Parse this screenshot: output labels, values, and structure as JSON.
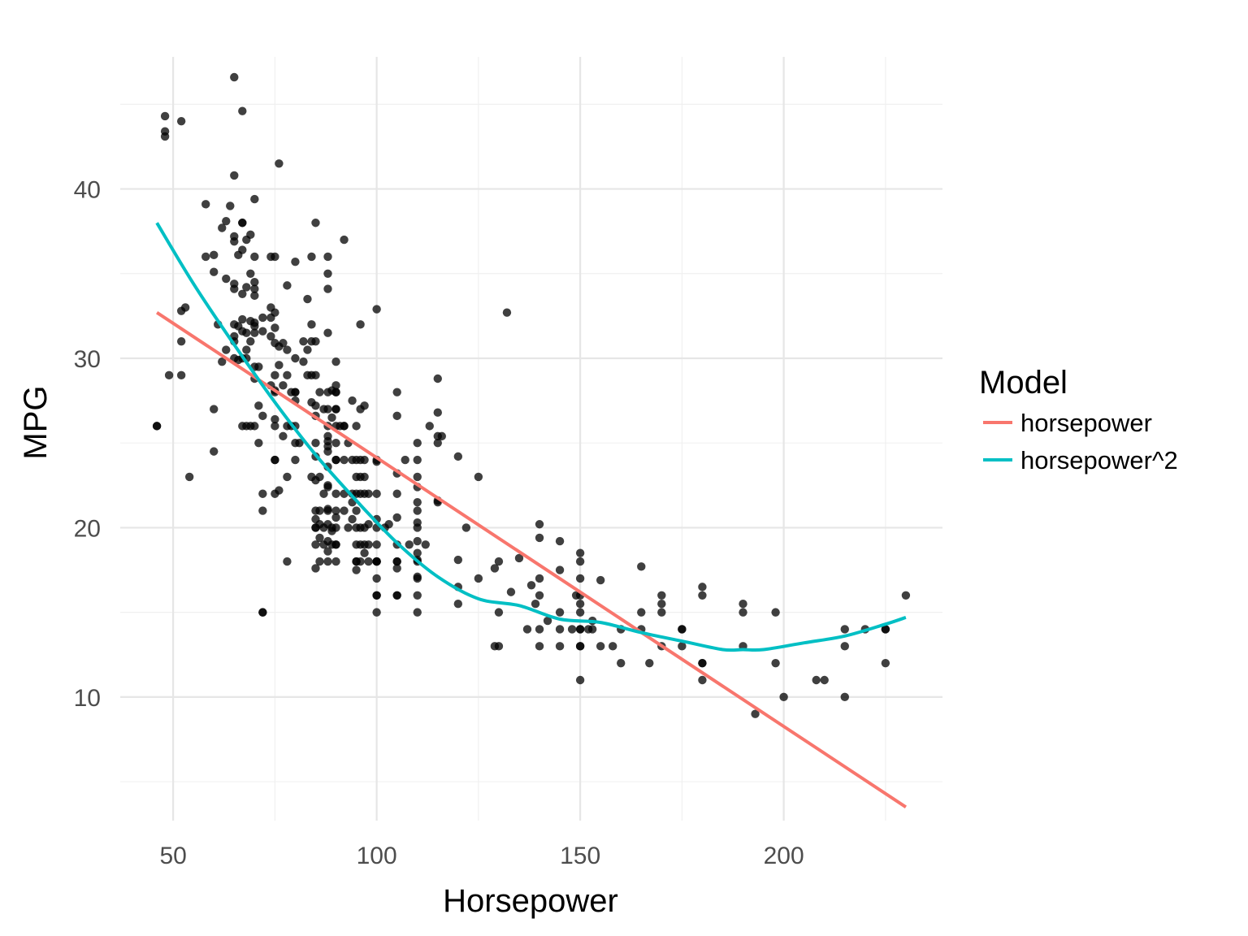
{
  "chart_data": {
    "type": "scatter",
    "xlabel": "Horsepower",
    "ylabel": "MPG",
    "xlim": [
      37,
      239
    ],
    "ylim": [
      2.7,
      47.8
    ],
    "x_ticks": [
      50,
      100,
      150,
      200
    ],
    "y_ticks": [
      10,
      20,
      30,
      40
    ],
    "x_tick_labels": [
      "50",
      "100",
      "150",
      "200"
    ],
    "y_tick_labels": [
      "10",
      "20",
      "30",
      "40"
    ],
    "grid": true,
    "legend": {
      "title": "Model",
      "position": "right",
      "entries": [
        {
          "label": "horsepower",
          "color": "#F8766D"
        },
        {
          "label": "horsepower^2",
          "color": "#00BFC4"
        }
      ]
    },
    "point_color": "#000000",
    "point_opacity": 0.75,
    "points": [
      [
        46,
        26
      ],
      [
        46,
        26
      ],
      [
        48,
        44.3
      ],
      [
        48,
        43.4
      ],
      [
        48,
        43.1
      ],
      [
        49,
        29
      ],
      [
        52,
        44
      ],
      [
        52,
        32.8
      ],
      [
        52,
        31
      ],
      [
        52,
        29
      ],
      [
        53,
        33
      ],
      [
        54,
        23
      ],
      [
        58,
        39.1
      ],
      [
        58,
        36
      ],
      [
        60,
        36.1
      ],
      [
        60,
        35.1
      ],
      [
        60,
        27
      ],
      [
        60,
        24.5
      ],
      [
        61,
        32
      ],
      [
        62,
        29.8
      ],
      [
        62,
        37.7
      ],
      [
        63,
        38.1
      ],
      [
        63,
        30.5
      ],
      [
        63,
        34.7
      ],
      [
        64,
        39
      ],
      [
        65,
        46.6
      ],
      [
        65,
        40.8
      ],
      [
        65,
        37.2
      ],
      [
        65,
        36.9
      ],
      [
        65,
        34.4
      ],
      [
        65,
        34.1
      ],
      [
        65,
        32
      ],
      [
        65,
        31.3
      ],
      [
        65,
        31
      ],
      [
        65,
        30
      ],
      [
        66,
        36.1
      ],
      [
        66,
        31.9
      ],
      [
        66,
        29.9
      ],
      [
        67,
        44.6
      ],
      [
        67,
        38
      ],
      [
        67,
        38
      ],
      [
        67,
        36.4
      ],
      [
        67,
        33.8
      ],
      [
        67,
        32.3
      ],
      [
        67,
        31.6
      ],
      [
        67,
        30
      ],
      [
        67,
        26
      ],
      [
        68,
        34.2
      ],
      [
        68,
        37
      ],
      [
        68,
        31.5
      ],
      [
        68,
        30
      ],
      [
        68,
        30.5
      ],
      [
        68,
        26
      ],
      [
        69,
        37.3
      ],
      [
        69,
        35
      ],
      [
        69,
        32.2
      ],
      [
        69,
        31
      ],
      [
        69,
        26
      ],
      [
        70,
        39.4
      ],
      [
        70,
        36
      ],
      [
        70,
        34.5
      ],
      [
        70,
        34.1
      ],
      [
        70,
        33.7
      ],
      [
        70,
        32.1
      ],
      [
        70,
        31.9
      ],
      [
        70,
        31.5
      ],
      [
        70,
        29.5
      ],
      [
        70,
        28.8
      ],
      [
        70,
        26
      ],
      [
        71,
        29.5
      ],
      [
        71,
        27.2
      ],
      [
        71,
        25
      ],
      [
        72,
        32.4
      ],
      [
        72,
        31.6
      ],
      [
        72,
        26.6
      ],
      [
        72,
        22
      ],
      [
        72,
        21
      ],
      [
        72,
        15
      ],
      [
        72,
        15
      ],
      [
        74,
        36
      ],
      [
        74,
        33
      ],
      [
        74,
        32.4
      ],
      [
        74,
        31.3
      ],
      [
        74,
        28.4
      ],
      [
        75,
        36
      ],
      [
        75,
        32.7
      ],
      [
        75,
        31.8
      ],
      [
        75,
        30.9
      ],
      [
        75,
        29
      ],
      [
        75,
        28.1
      ],
      [
        75,
        26.4
      ],
      [
        75,
        26
      ],
      [
        75,
        24
      ],
      [
        75,
        24
      ],
      [
        75,
        22
      ],
      [
        75,
        28
      ],
      [
        76,
        41.5
      ],
      [
        76,
        30.7
      ],
      [
        76,
        29.6
      ],
      [
        76,
        22.2
      ],
      [
        77,
        30.9
      ],
      [
        77,
        28.4
      ],
      [
        77,
        25.4
      ],
      [
        78,
        34.3
      ],
      [
        78,
        30.5
      ],
      [
        78,
        29
      ],
      [
        78,
        26
      ],
      [
        78,
        23
      ],
      [
        78,
        18
      ],
      [
        79,
        28
      ],
      [
        79,
        26
      ],
      [
        80,
        35.7
      ],
      [
        80,
        30
      ],
      [
        80,
        28
      ],
      [
        80,
        28
      ],
      [
        80,
        27.5
      ],
      [
        80,
        26
      ],
      [
        80,
        25
      ],
      [
        80,
        24
      ],
      [
        81,
        25
      ],
      [
        82,
        29.8
      ],
      [
        82,
        31
      ],
      [
        83,
        33.5
      ],
      [
        83,
        30.5
      ],
      [
        83,
        29
      ],
      [
        84,
        29
      ],
      [
        84,
        27.4
      ],
      [
        84,
        36
      ],
      [
        84,
        32
      ],
      [
        84,
        31
      ],
      [
        84,
        23
      ],
      [
        85,
        38
      ],
      [
        85,
        31
      ],
      [
        85,
        27.2
      ],
      [
        85,
        29
      ],
      [
        85,
        26.6
      ],
      [
        85,
        25
      ],
      [
        85,
        24.2
      ],
      [
        85,
        21
      ],
      [
        85,
        20
      ],
      [
        85,
        20
      ],
      [
        85,
        19
      ],
      [
        85,
        17.6
      ],
      [
        85,
        20.5
      ],
      [
        85,
        22.8
      ],
      [
        86,
        28
      ],
      [
        86,
        23
      ],
      [
        86,
        21
      ],
      [
        86,
        20.2
      ],
      [
        86,
        19.4
      ],
      [
        86,
        18
      ],
      [
        87,
        27
      ],
      [
        87,
        22
      ],
      [
        87,
        20
      ],
      [
        87,
        19
      ],
      [
        88,
        36
      ],
      [
        88,
        35
      ],
      [
        88,
        34.1
      ],
      [
        88,
        31.5
      ],
      [
        88,
        28
      ],
      [
        88,
        27
      ],
      [
        88,
        26
      ],
      [
        88,
        25.4
      ],
      [
        88,
        24.5
      ],
      [
        88,
        23.6
      ],
      [
        88,
        22.5
      ],
      [
        88,
        21
      ],
      [
        88,
        20.2
      ],
      [
        88,
        19.2
      ],
      [
        88,
        18.6
      ],
      [
        88,
        18
      ],
      [
        88,
        21.1
      ],
      [
        88,
        22.4
      ],
      [
        88,
        25.1
      ],
      [
        88,
        24.8
      ],
      [
        89,
        28.1
      ],
      [
        89,
        26.5
      ],
      [
        89,
        20
      ],
      [
        89,
        19.8
      ],
      [
        89,
        19
      ],
      [
        90,
        29.8
      ],
      [
        90,
        28.4
      ],
      [
        90,
        28
      ],
      [
        90,
        27
      ],
      [
        90,
        26
      ],
      [
        90,
        25
      ],
      [
        90,
        24
      ],
      [
        90,
        24
      ],
      [
        90,
        22
      ],
      [
        90,
        21
      ],
      [
        90,
        20.6
      ],
      [
        90,
        20
      ],
      [
        90,
        19
      ],
      [
        90,
        19
      ],
      [
        90,
        18
      ],
      [
        90,
        27
      ],
      [
        90,
        28
      ],
      [
        91,
        26
      ],
      [
        92,
        37
      ],
      [
        92,
        26
      ],
      [
        92,
        24
      ],
      [
        92,
        22
      ],
      [
        92,
        21
      ],
      [
        92,
        26
      ],
      [
        93,
        25
      ],
      [
        93,
        20
      ],
      [
        94,
        27.5
      ],
      [
        94,
        24
      ],
      [
        94,
        22
      ],
      [
        94,
        21.5
      ],
      [
        94,
        20.5
      ],
      [
        95,
        26
      ],
      [
        95,
        24
      ],
      [
        95,
        23
      ],
      [
        95,
        22
      ],
      [
        95,
        21
      ],
      [
        95,
        19
      ],
      [
        95,
        18
      ],
      [
        95,
        17.5
      ],
      [
        95,
        20
      ],
      [
        95,
        18
      ],
      [
        96,
        32
      ],
      [
        96,
        27
      ],
      [
        96,
        24
      ],
      [
        96,
        23
      ],
      [
        96,
        22
      ],
      [
        96,
        20
      ],
      [
        96,
        19
      ],
      [
        96,
        18
      ],
      [
        97,
        27.2
      ],
      [
        97,
        24
      ],
      [
        97,
        23
      ],
      [
        97,
        22
      ],
      [
        97,
        19
      ],
      [
        97,
        18.5
      ],
      [
        97,
        20
      ],
      [
        98,
        22
      ],
      [
        98,
        20.2
      ],
      [
        98,
        19
      ],
      [
        98,
        18
      ],
      [
        100,
        32.9
      ],
      [
        100,
        23.9
      ],
      [
        100,
        22
      ],
      [
        100,
        20.5
      ],
      [
        100,
        20
      ],
      [
        100,
        19
      ],
      [
        100,
        18
      ],
      [
        100,
        18
      ],
      [
        100,
        17
      ],
      [
        100,
        16
      ],
      [
        100,
        16
      ],
      [
        100,
        15
      ],
      [
        100,
        18
      ],
      [
        100,
        24
      ],
      [
        102,
        20
      ],
      [
        103,
        20.2
      ],
      [
        105,
        28
      ],
      [
        105,
        26.6
      ],
      [
        105,
        23.2
      ],
      [
        105,
        22
      ],
      [
        105,
        20.6
      ],
      [
        105,
        19
      ],
      [
        105,
        18
      ],
      [
        105,
        18
      ],
      [
        105,
        17.6
      ],
      [
        105,
        16
      ],
      [
        105,
        16
      ],
      [
        107,
        24
      ],
      [
        108,
        19
      ],
      [
        110,
        25
      ],
      [
        110,
        24
      ],
      [
        110,
        23
      ],
      [
        110,
        22.4
      ],
      [
        110,
        21.5
      ],
      [
        110,
        21
      ],
      [
        110,
        20
      ],
      [
        110,
        19.2
      ],
      [
        110,
        18.5
      ],
      [
        110,
        18
      ],
      [
        110,
        17
      ],
      [
        110,
        16
      ],
      [
        110,
        15
      ],
      [
        110,
        20.3
      ],
      [
        110,
        18.1
      ],
      [
        110,
        17.1
      ],
      [
        112,
        19
      ],
      [
        113,
        26
      ],
      [
        115,
        28.8
      ],
      [
        115,
        26.8
      ],
      [
        115,
        25.4
      ],
      [
        115,
        25
      ],
      [
        115,
        21.5
      ],
      [
        115,
        21.6
      ],
      [
        116,
        25.4
      ],
      [
        120,
        24.2
      ],
      [
        120,
        18.1
      ],
      [
        120,
        16.5
      ],
      [
        120,
        15.5
      ],
      [
        122,
        20
      ],
      [
        125,
        23
      ],
      [
        125,
        17
      ],
      [
        129,
        17.6
      ],
      [
        129,
        13
      ],
      [
        130,
        18
      ],
      [
        130,
        15
      ],
      [
        130,
        13
      ],
      [
        132,
        32.7
      ],
      [
        133,
        16.2
      ],
      [
        135,
        18.2
      ],
      [
        137,
        14
      ],
      [
        138,
        16.6
      ],
      [
        139,
        15.5
      ],
      [
        140,
        20.2
      ],
      [
        140,
        19.4
      ],
      [
        140,
        17
      ],
      [
        140,
        16
      ],
      [
        140,
        14
      ],
      [
        140,
        13
      ],
      [
        142,
        14.5
      ],
      [
        145,
        19.2
      ],
      [
        145,
        17.5
      ],
      [
        145,
        15
      ],
      [
        145,
        14
      ],
      [
        145,
        13
      ],
      [
        148,
        14
      ],
      [
        149,
        16
      ],
      [
        150,
        18.5
      ],
      [
        150,
        18
      ],
      [
        150,
        17
      ],
      [
        150,
        16
      ],
      [
        150,
        15.5
      ],
      [
        150,
        15
      ],
      [
        150,
        14
      ],
      [
        150,
        14
      ],
      [
        150,
        13
      ],
      [
        150,
        13
      ],
      [
        150,
        11
      ],
      [
        152,
        14
      ],
      [
        153,
        14.5
      ],
      [
        153,
        14
      ],
      [
        155,
        16.9
      ],
      [
        155,
        13
      ],
      [
        158,
        13
      ],
      [
        160,
        14
      ],
      [
        160,
        12
      ],
      [
        165,
        17.7
      ],
      [
        165,
        15
      ],
      [
        165,
        14
      ],
      [
        167,
        12
      ],
      [
        170,
        16
      ],
      [
        170,
        15.5
      ],
      [
        170,
        15
      ],
      [
        170,
        13
      ],
      [
        175,
        14
      ],
      [
        175,
        14
      ],
      [
        175,
        13
      ],
      [
        180,
        16.5
      ],
      [
        180,
        16
      ],
      [
        180,
        12
      ],
      [
        180,
        12
      ],
      [
        180,
        11
      ],
      [
        190,
        15.5
      ],
      [
        190,
        15
      ],
      [
        190,
        13
      ],
      [
        193,
        9
      ],
      [
        198,
        15
      ],
      [
        198,
        12
      ],
      [
        200,
        10
      ],
      [
        208,
        11
      ],
      [
        210,
        11
      ],
      [
        215,
        14
      ],
      [
        215,
        13
      ],
      [
        215,
        10
      ],
      [
        220,
        14
      ],
      [
        225,
        14
      ],
      [
        225,
        14
      ],
      [
        225,
        12
      ],
      [
        230,
        16
      ]
    ],
    "series": [
      {
        "name": "horsepower",
        "color": "#F8766D",
        "x": [
          46,
          230
        ],
        "y": [
          32.7,
          3.5
        ]
      },
      {
        "name": "horsepower^2",
        "color": "#00BFC4",
        "x": [
          46,
          55,
          65,
          75,
          85,
          95,
          105,
          115,
          125,
          135,
          145,
          155,
          165,
          175,
          185,
          190,
          195,
          205,
          215,
          225,
          230
        ],
        "y": [
          38.0,
          34.4,
          30.8,
          27.4,
          24.3,
          21.6,
          19.1,
          17.1,
          15.8,
          15.4,
          14.6,
          14.4,
          13.8,
          13.3,
          12.8,
          12.8,
          12.8,
          13.2,
          13.6,
          14.3,
          14.7
        ]
      }
    ]
  }
}
